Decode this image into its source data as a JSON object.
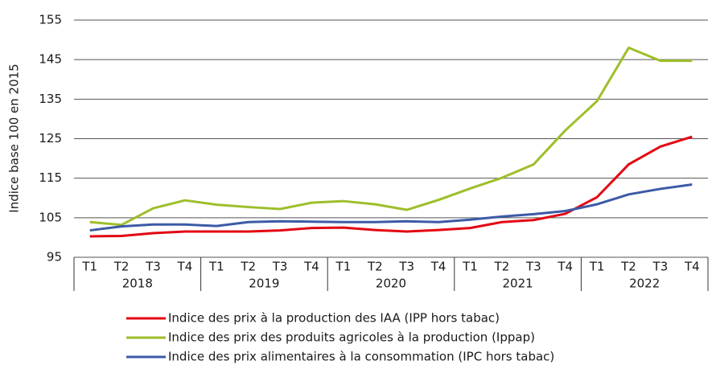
{
  "chart_data": {
    "type": "line",
    "y_label": "Indice base 100 en 2015",
    "categories": [
      "T1",
      "T2",
      "T3",
      "T4",
      "T1",
      "T2",
      "T3",
      "T4",
      "T1",
      "T2",
      "T3",
      "T4",
      "T1",
      "T2",
      "T3",
      "T4",
      "T1",
      "T2",
      "T3",
      "T4"
    ],
    "year_groups": [
      "2018",
      "2019",
      "2020",
      "2021",
      "2022"
    ],
    "ylim": [
      95,
      155
    ],
    "yticks": [
      95,
      105,
      115,
      125,
      135,
      145,
      155
    ],
    "grid": true,
    "legend": "bottom",
    "series": [
      {
        "name": "Indice des prix à la production des IAA (IPP hors tabac)",
        "color": "#e30613",
        "values": [
          100.3,
          100.4,
          101.1,
          101.5,
          101.5,
          101.5,
          101.8,
          102.4,
          102.5,
          101.9,
          101.5,
          101.9,
          102.4,
          103.9,
          104.4,
          106.0,
          110.2,
          118.5,
          123.0,
          125.5
        ]
      },
      {
        "name": "Indice des prix des produits agricoles à la production (Ippap)",
        "color": "#9dbf2a",
        "values": [
          103.9,
          103.2,
          107.4,
          109.4,
          108.3,
          107.7,
          107.2,
          108.8,
          109.2,
          108.4,
          107.0,
          109.5,
          112.4,
          115.1,
          118.5,
          127.1,
          134.5,
          148.0,
          144.7,
          144.7
        ]
      },
      {
        "name": "Indice des prix alimentaires à la consommation (IPC hors tabac)",
        "color": "#3c5aa6",
        "values": [
          101.8,
          102.8,
          103.3,
          103.3,
          102.9,
          103.9,
          104.1,
          104.0,
          103.9,
          103.9,
          104.1,
          103.9,
          104.5,
          105.3,
          105.9,
          106.7,
          108.4,
          110.9,
          112.3,
          113.4
        ]
      }
    ]
  }
}
